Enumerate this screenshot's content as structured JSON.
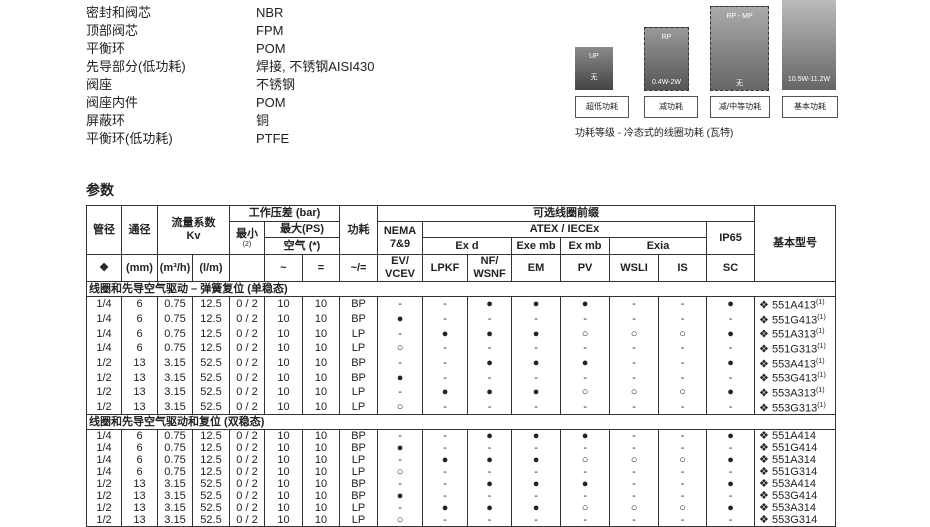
{
  "materials": [
    {
      "label": "密封和阀芯",
      "value": "NBR"
    },
    {
      "label": "顶部阀芯",
      "value": "FPM"
    },
    {
      "label": "平衡环",
      "value": "POM"
    },
    {
      "label": "先导部分(低功耗)",
      "value": "焊接, 不锈钢AISI430"
    },
    {
      "label": "阀座",
      "value": "不锈钢"
    },
    {
      "label": "阀座内件",
      "value": "POM"
    },
    {
      "label": "屏蔽环",
      "value": "铜"
    },
    {
      "label": "平衡环(低功耗)",
      "value": "PTFE"
    }
  ],
  "power_classes": [
    {
      "top": "UP",
      "bottom": "无",
      "label": "超低功耗"
    },
    {
      "top": "RP",
      "bottom": "0.4W-2W",
      "label": "减功耗"
    },
    {
      "top": "RP - MP",
      "bottom": "无",
      "label": "减/中等功耗"
    },
    {
      "bottom": "10.5W-11.2W",
      "label": "基本功耗"
    }
  ],
  "power_caption": "功耗等级 - 冷态式的线圈功耗 (瓦特)",
  "section_title": "参数",
  "table": {
    "header": {
      "diameter": "管径",
      "bore": "通径",
      "kv": "流量系数",
      "kv2": "Kv",
      "pressure": "工作压差 (bar)",
      "min": "最小",
      "min_note": "(2)",
      "max": "最大(PS)",
      "air": "空气 (*)",
      "power": "功耗",
      "coil": "可选线圈前缀",
      "nema": "NEMA",
      "nema2": "7&9",
      "atex": "ATEX / IECEx",
      "exd": "Ex d",
      "exemb": "Exe mb",
      "exmb": "Ex mb",
      "exia": "Exia",
      "ip65": "IP65",
      "model": "基本型号"
    },
    "units": [
      "❖",
      "(mm)",
      "(m³/h)",
      "(l/m)",
      "",
      "~",
      "=",
      "~/="
    ],
    "coils": [
      "EV/ VCEV",
      "LPKF",
      "NF/ WSNF",
      "EM",
      "PV",
      "WSLI",
      "IS",
      "SC"
    ],
    "groups": [
      {
        "title": "线圈和先导空气驱动 – 弹簧复位 (单稳态)",
        "rows": [
          {
            "cells": [
              "1/4",
              "6",
              "0.75",
              "12.5",
              "0 / 2",
              "10",
              "10",
              "BP",
              "-",
              "-",
              "●",
              "●",
              "●",
              "-",
              "-",
              "●",
              "❖ 551A413"
            ],
            "note": "(1)"
          },
          {
            "cells": [
              "1/4",
              "6",
              "0.75",
              "12.5",
              "0 / 2",
              "10",
              "10",
              "BP",
              "●",
              "-",
              "-",
              "-",
              "-",
              "-",
              "-",
              "-",
              "❖ 551G413"
            ],
            "note": "(1)"
          },
          {
            "cells": [
              "1/4",
              "6",
              "0.75",
              "12.5",
              "0 / 2",
              "10",
              "10",
              "LP",
              "-",
              "●",
              "●",
              "●",
              "○",
              "○",
              "○",
              "●",
              "❖ 551A313"
            ],
            "note": "(1)"
          },
          {
            "cells": [
              "1/4",
              "6",
              "0.75",
              "12.5",
              "0 / 2",
              "10",
              "10",
              "LP",
              "○",
              "-",
              "-",
              "-",
              "-",
              "-",
              "-",
              "-",
              "❖ 551G313"
            ],
            "note": "(1)"
          },
          {
            "cells": [
              "1/2",
              "13",
              "3.15",
              "52.5",
              "0 / 2",
              "10",
              "10",
              "BP",
              "-",
              "-",
              "●",
              "●",
              "●",
              "-",
              "-",
              "●",
              "❖ 553A413"
            ],
            "note": "(1)"
          },
          {
            "cells": [
              "1/2",
              "13",
              "3.15",
              "52.5",
              "0 / 2",
              "10",
              "10",
              "BP",
              "●",
              "-",
              "-",
              "-",
              "-",
              "-",
              "-",
              "-",
              "❖ 553G413"
            ],
            "note": "(1)"
          },
          {
            "cells": [
              "1/2",
              "13",
              "3.15",
              "52.5",
              "0 / 2",
              "10",
              "10",
              "LP",
              "-",
              "●",
              "●",
              "●",
              "○",
              "○",
              "○",
              "●",
              "❖ 553A313"
            ],
            "note": "(1)"
          },
          {
            "cells": [
              "1/2",
              "13",
              "3.15",
              "52.5",
              "0 / 2",
              "10",
              "10",
              "LP",
              "○",
              "-",
              "-",
              "-",
              "-",
              "-",
              "-",
              "-",
              "❖ 553G313"
            ],
            "note": "(1)"
          }
        ]
      },
      {
        "title": "线圈和先导空气驱动和复位 (双稳态)",
        "rows": [
          {
            "cells": [
              "1/4",
              "6",
              "0.75",
              "12.5",
              "0 / 2",
              "10",
              "10",
              "BP",
              "-",
              "-",
              "●",
              "●",
              "●",
              "-",
              "-",
              "●",
              "❖ 551A414"
            ]
          },
          {
            "cells": [
              "1/4",
              "6",
              "0.75",
              "12.5",
              "0 / 2",
              "10",
              "10",
              "BP",
              "●",
              "-",
              "-",
              "-",
              "-",
              "-",
              "-",
              "-",
              "❖ 551G414"
            ]
          },
          {
            "cells": [
              "1/4",
              "6",
              "0.75",
              "12.5",
              "0 / 2",
              "10",
              "10",
              "LP",
              "-",
              "●",
              "●",
              "●",
              "○",
              "○",
              "○",
              "●",
              "❖ 551A314"
            ]
          },
          {
            "cells": [
              "1/4",
              "6",
              "0.75",
              "12.5",
              "0 / 2",
              "10",
              "10",
              "LP",
              "○",
              "-",
              "-",
              "-",
              "-",
              "-",
              "-",
              "-",
              "❖ 551G314"
            ]
          },
          {
            "cells": [
              "1/2",
              "13",
              "3.15",
              "52.5",
              "0 / 2",
              "10",
              "10",
              "BP",
              "-",
              "-",
              "●",
              "●",
              "●",
              "-",
              "-",
              "●",
              "❖ 553A414"
            ]
          },
          {
            "cells": [
              "1/2",
              "13",
              "3.15",
              "52.5",
              "0 / 2",
              "10",
              "10",
              "BP",
              "●",
              "-",
              "-",
              "-",
              "-",
              "-",
              "-",
              "-",
              "❖ 553G414"
            ]
          },
          {
            "cells": [
              "1/2",
              "13",
              "3.15",
              "52.5",
              "0 / 2",
              "10",
              "10",
              "LP",
              "-",
              "●",
              "●",
              "●",
              "○",
              "○",
              "○",
              "●",
              "❖ 553A314"
            ]
          },
          {
            "cells": [
              "1/2",
              "13",
              "3.15",
              "52.5",
              "0 / 2",
              "10",
              "10",
              "LP",
              "○",
              "-",
              "-",
              "-",
              "-",
              "-",
              "-",
              "-",
              "❖ 553G314"
            ]
          }
        ]
      }
    ]
  }
}
